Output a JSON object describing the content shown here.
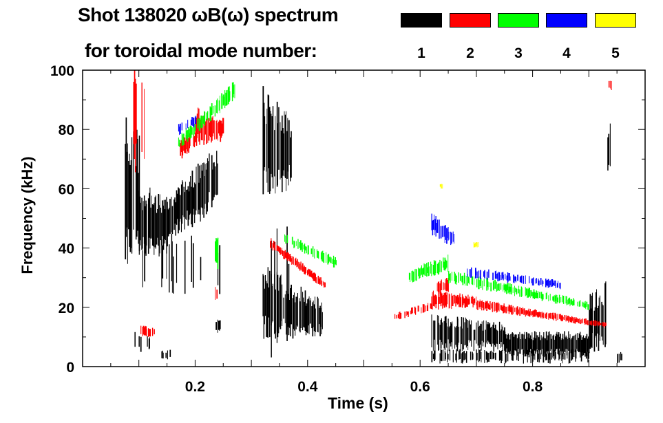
{
  "chart_data": {
    "type": "heatmap",
    "title_line1": "Shot 138020 ωB(ω) spectrum",
    "title_line2": "for toroidal mode number:",
    "xlabel": "Time (s)",
    "ylabel": "Frequency (kHz)",
    "xlim": [
      0,
      1.0
    ],
    "ylim": [
      0,
      100
    ],
    "xticks": [
      0.2,
      0.4,
      0.6,
      0.8
    ],
    "xtick_labels": [
      "0.2",
      "0.4",
      "0.6",
      "0.8"
    ],
    "yticks": [
      0,
      20,
      40,
      60,
      80,
      100
    ],
    "ytick_labels": [
      "0",
      "20",
      "40",
      "60",
      "80",
      "100"
    ],
    "legend": [
      {
        "label": "1",
        "color": "#000000"
      },
      {
        "label": "2",
        "color": "#ff0000"
      },
      {
        "label": "3",
        "color": "#00ff00"
      },
      {
        "label": "4",
        "color": "#0000ff"
      },
      {
        "label": "5",
        "color": "#ffff00"
      }
    ],
    "series": [
      {
        "name": "1",
        "color": "#000000",
        "regions": [
          {
            "t": [
              0.075,
              0.1
            ],
            "lo": [
              30,
              35
            ],
            "hi": [
              88,
              80
            ],
            "density": 0.8
          },
          {
            "t": [
              0.1,
              0.15
            ],
            "lo": [
              35,
              38
            ],
            "hi": [
              62,
              58
            ],
            "density": 0.9
          },
          {
            "t": [
              0.15,
              0.22
            ],
            "lo": [
              42,
              50
            ],
            "hi": [
              58,
              72
            ],
            "density": 0.9
          },
          {
            "t": [
              0.22,
              0.24
            ],
            "lo": [
              52,
              55
            ],
            "hi": [
              72,
              74
            ],
            "density": 0.8
          },
          {
            "t": [
              0.09,
              0.25
            ],
            "lo": [
              22,
              22
            ],
            "hi": [
              45,
              45
            ],
            "density": 0.15
          },
          {
            "t": [
              0.085,
              0.12
            ],
            "lo": [
              4,
              4
            ],
            "hi": [
              12,
              12
            ],
            "density": 0.3
          },
          {
            "t": [
              0.14,
              0.155
            ],
            "lo": [
              2,
              2
            ],
            "hi": [
              6,
              6
            ],
            "density": 0.4
          },
          {
            "t": [
              0.235,
              0.245
            ],
            "lo": [
              11,
              11
            ],
            "hi": [
              16,
              16
            ],
            "density": 0.6
          },
          {
            "t": [
              0.32,
              0.37
            ],
            "lo": [
              55,
              60
            ],
            "hi": [
              95,
              85
            ],
            "density": 0.85
          },
          {
            "t": [
              0.32,
              0.43
            ],
            "lo": [
              8,
              10
            ],
            "hi": [
              35,
              22
            ],
            "density": 0.9
          },
          {
            "t": [
              0.32,
              0.37
            ],
            "lo": [
              1,
              1
            ],
            "hi": [
              50,
              50
            ],
            "density": 0.25
          },
          {
            "t": [
              0.62,
              0.75
            ],
            "lo": [
              5,
              5
            ],
            "hi": [
              18,
              15
            ],
            "density": 0.85
          },
          {
            "t": [
              0.75,
              0.9
            ],
            "lo": [
              3,
              3
            ],
            "hi": [
              12,
              12
            ],
            "density": 1.0
          },
          {
            "t": [
              0.62,
              0.9
            ],
            "lo": [
              1,
              1
            ],
            "hi": [
              6,
              6
            ],
            "density": 0.5
          },
          {
            "t": [
              0.9,
              0.93
            ],
            "lo": [
              4,
              4
            ],
            "hi": [
              25,
              30
            ],
            "density": 0.8
          },
          {
            "t": [
              0.93,
              0.94
            ],
            "lo": [
              62,
              65
            ],
            "hi": [
              80,
              85
            ],
            "density": 0.5
          },
          {
            "t": [
              0.95,
              0.96
            ],
            "lo": [
              1,
              1
            ],
            "hi": [
              5,
              5
            ],
            "density": 0.9
          }
        ]
      },
      {
        "name": "2",
        "color": "#ff0000",
        "regions": [
          {
            "t": [
              0.09,
              0.11
            ],
            "lo": [
              62,
              62
            ],
            "hi": [
              100,
              100
            ],
            "density": 0.6
          },
          {
            "t": [
              0.17,
              0.2
            ],
            "lo": [
              69,
              74
            ],
            "hi": [
              77,
              80
            ],
            "density": 0.7
          },
          {
            "t": [
              0.2,
              0.25
            ],
            "lo": [
              74,
              76
            ],
            "hi": [
              88,
              84
            ],
            "density": 0.95
          },
          {
            "t": [
              0.1,
              0.13
            ],
            "lo": [
              10,
              10
            ],
            "hi": [
              14,
              14
            ],
            "density": 0.6
          },
          {
            "t": [
              0.235,
              0.24
            ],
            "lo": [
              22,
              22
            ],
            "hi": [
              28,
              28
            ],
            "density": 0.6
          },
          {
            "t": [
              0.33,
              0.43
            ],
            "lo": [
              40,
              26
            ],
            "hi": [
              44,
              29
            ],
            "density": 0.9
          },
          {
            "t": [
              0.55,
              0.62
            ],
            "lo": [
              15,
              19
            ],
            "hi": [
              18,
              22
            ],
            "density": 0.4
          },
          {
            "t": [
              0.62,
              0.7
            ],
            "lo": [
              19,
              20
            ],
            "hi": [
              26,
              24
            ],
            "density": 0.9
          },
          {
            "t": [
              0.63,
              0.65
            ],
            "lo": [
              24,
              24
            ],
            "hi": [
              30,
              30
            ],
            "density": 0.8
          },
          {
            "t": [
              0.7,
              0.93
            ],
            "lo": [
              19,
              13
            ],
            "hi": [
              23,
              15
            ],
            "density": 0.9
          },
          {
            "t": [
              0.935,
              0.94
            ],
            "lo": [
              93,
              93
            ],
            "hi": [
              98,
              98
            ],
            "density": 0.5
          }
        ]
      },
      {
        "name": "3",
        "color": "#00ff00",
        "regions": [
          {
            "t": [
              0.17,
              0.27
            ],
            "lo": [
              73,
              90
            ],
            "hi": [
              78,
              97
            ],
            "density": 0.8
          },
          {
            "t": [
              0.235,
              0.24
            ],
            "lo": [
              32,
              32
            ],
            "hi": [
              44,
              44
            ],
            "density": 0.6
          },
          {
            "t": [
              0.35,
              0.45
            ],
            "lo": [
              42,
              33
            ],
            "hi": [
              46,
              37
            ],
            "density": 0.5
          },
          {
            "t": [
              0.58,
              0.65
            ],
            "lo": [
              28,
              32
            ],
            "hi": [
              33,
              38
            ],
            "density": 0.8
          },
          {
            "t": [
              0.65,
              0.9
            ],
            "lo": [
              28,
              19
            ],
            "hi": [
              33,
              22
            ],
            "density": 0.7
          }
        ]
      },
      {
        "name": "4",
        "color": "#0000ff",
        "regions": [
          {
            "t": [
              0.17,
              0.21
            ],
            "lo": [
              78,
              82
            ],
            "hi": [
              82,
              86
            ],
            "density": 0.4
          },
          {
            "t": [
              0.62,
              0.66
            ],
            "lo": [
              44,
              40
            ],
            "hi": [
              52,
              46
            ],
            "density": 0.8
          },
          {
            "t": [
              0.68,
              0.85
            ],
            "lo": [
              30,
              26
            ],
            "hi": [
              34,
              29
            ],
            "density": 0.6
          }
        ]
      },
      {
        "name": "5",
        "color": "#ffff00",
        "regions": [
          {
            "t": [
              0.695,
              0.705
            ],
            "lo": [
              40,
              40
            ],
            "hi": [
              42,
              42
            ],
            "density": 0.9
          },
          {
            "t": [
              0.635,
              0.64
            ],
            "lo": [
              60,
              60
            ],
            "hi": [
              62,
              62
            ],
            "density": 0.9
          }
        ]
      }
    ]
  }
}
